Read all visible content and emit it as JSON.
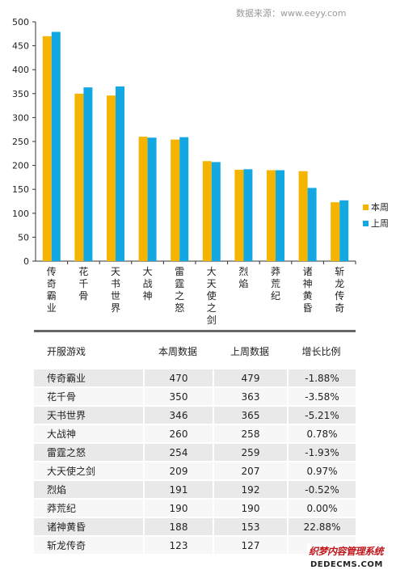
{
  "source_text": "数据来源：www.eeyy.com",
  "colors": {
    "current": "#f5b400",
    "previous": "#13a8e2",
    "axis": "#333333",
    "row_odd": "#e9e9e9",
    "row_even": "#f7f7f7"
  },
  "chart_data": {
    "type": "bar",
    "title": "",
    "xlabel": "",
    "ylabel": "",
    "ylim": [
      0,
      500
    ],
    "yticks": [
      0,
      50,
      100,
      150,
      200,
      250,
      300,
      350,
      400,
      450,
      500
    ],
    "grid": false,
    "legend_position": "right",
    "categories": [
      "传奇霸业",
      "花千骨",
      "天书世界",
      "大战神",
      "雷霆之怒",
      "大天使之剑",
      "烈焰",
      "莽荒纪",
      "诸神黄昏",
      "斩龙传奇"
    ],
    "series": [
      {
        "name": "本周",
        "values": [
          470,
          350,
          346,
          260,
          254,
          209,
          191,
          190,
          188,
          123
        ]
      },
      {
        "name": "上周",
        "values": [
          479,
          363,
          365,
          258,
          259,
          207,
          192,
          190,
          153,
          127
        ]
      }
    ]
  },
  "table": {
    "headers": [
      "开服游戏",
      "本周数据",
      "上周数据",
      "增长比例"
    ],
    "rows": [
      [
        "传奇霸业",
        "470",
        "479",
        "-1.88%"
      ],
      [
        "花千骨",
        "350",
        "363",
        "-3.58%"
      ],
      [
        "天书世界",
        "346",
        "365",
        "-5.21%"
      ],
      [
        "大战神",
        "260",
        "258",
        "0.78%"
      ],
      [
        "雷霆之怒",
        "254",
        "259",
        "-1.93%"
      ],
      [
        "大天使之剑",
        "209",
        "207",
        "0.97%"
      ],
      [
        "烈焰",
        "191",
        "192",
        "-0.52%"
      ],
      [
        "莽荒纪",
        "190",
        "190",
        "0.00%"
      ],
      [
        "诸神黄昏",
        "188",
        "153",
        "22.88%"
      ],
      [
        "斩龙传奇",
        "123",
        "127",
        ""
      ]
    ]
  },
  "watermark": {
    "line1": "织梦内容管理系统",
    "line2": "DEDECMS.COM"
  }
}
